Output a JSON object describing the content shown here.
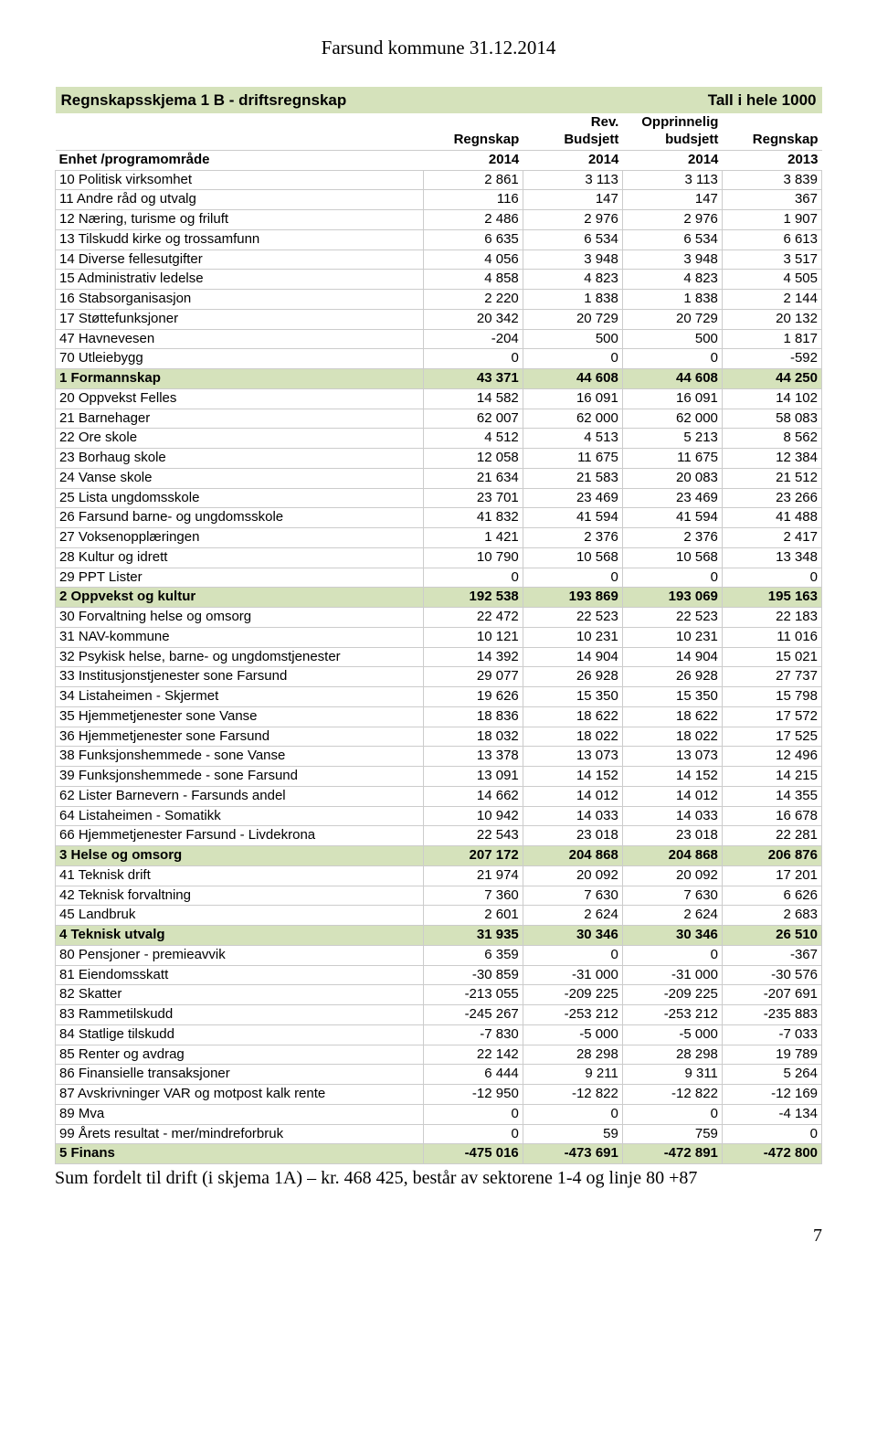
{
  "page_header": "Farsund kommune 31.12.2014",
  "title_left": "Regnskapsskjema 1 B - driftsregnskap",
  "title_right": "Tall i hele 1000",
  "header": {
    "label_line1": "",
    "label_line2": "Enhet /programområde",
    "c1_line1": "Regnskap",
    "c1_line2": "2014",
    "c2_line1": "Rev.\nBudsjett",
    "c2_line2": "2014",
    "c3_line1": "Opprinnelig\nbudsjett",
    "c3_line2": "2014",
    "c4_line1": "Regnskap",
    "c4_line2": "2013"
  },
  "rows": [
    {
      "type": "data",
      "label": "10 Politisk virksomhet",
      "v": [
        "2 861",
        "3 113",
        "3 113",
        "3 839"
      ]
    },
    {
      "type": "data",
      "label": "11 Andre råd og utvalg",
      "v": [
        "116",
        "147",
        "147",
        "367"
      ]
    },
    {
      "type": "data",
      "label": "12 Næring, turisme og friluft",
      "v": [
        "2 486",
        "2 976",
        "2 976",
        "1 907"
      ]
    },
    {
      "type": "data",
      "label": "13 Tilskudd kirke og trossamfunn",
      "v": [
        "6 635",
        "6 534",
        "6 534",
        "6 613"
      ]
    },
    {
      "type": "data",
      "label": "14 Diverse fellesutgifter",
      "v": [
        "4 056",
        "3 948",
        "3 948",
        "3 517"
      ]
    },
    {
      "type": "data",
      "label": "15 Administrativ ledelse",
      "v": [
        "4 858",
        "4 823",
        "4 823",
        "4 505"
      ]
    },
    {
      "type": "data",
      "label": "16 Stabsorganisasjon",
      "v": [
        "2 220",
        "1 838",
        "1 838",
        "2 144"
      ]
    },
    {
      "type": "data",
      "label": "17 Støttefunksjoner",
      "v": [
        "20 342",
        "20 729",
        "20 729",
        "20 132"
      ]
    },
    {
      "type": "data",
      "label": "47 Havnevesen",
      "v": [
        "-204",
        "500",
        "500",
        "1 817"
      ]
    },
    {
      "type": "data",
      "label": "70 Utleiebygg",
      "v": [
        "0",
        "0",
        "0",
        "-592"
      ]
    },
    {
      "type": "subtotal",
      "label": "1   Formannskap",
      "v": [
        "43 371",
        "44 608",
        "44 608",
        "44 250"
      ]
    },
    {
      "type": "data",
      "label": "20 Oppvekst Felles",
      "v": [
        "14 582",
        "16 091",
        "16 091",
        "14 102"
      ]
    },
    {
      "type": "data",
      "label": "21 Barnehager",
      "v": [
        "62 007",
        "62 000",
        "62 000",
        "58 083"
      ]
    },
    {
      "type": "data",
      "label": "22 Ore skole",
      "v": [
        "4 512",
        "4 513",
        "5 213",
        "8 562"
      ]
    },
    {
      "type": "data",
      "label": "23 Borhaug skole",
      "v": [
        "12 058",
        "11 675",
        "11 675",
        "12 384"
      ]
    },
    {
      "type": "data",
      "label": "24 Vanse skole",
      "v": [
        "21 634",
        "21 583",
        "20 083",
        "21 512"
      ]
    },
    {
      "type": "data",
      "label": "25 Lista ungdomsskole",
      "v": [
        "23 701",
        "23 469",
        "23 469",
        "23 266"
      ]
    },
    {
      "type": "data",
      "label": "26 Farsund barne- og ungdomsskole",
      "v": [
        "41 832",
        "41 594",
        "41 594",
        "41 488"
      ]
    },
    {
      "type": "data",
      "label": "27 Voksenopplæringen",
      "v": [
        "1 421",
        "2 376",
        "2 376",
        "2 417"
      ]
    },
    {
      "type": "data",
      "label": "28 Kultur og idrett",
      "v": [
        "10 790",
        "10 568",
        "10 568",
        "13 348"
      ]
    },
    {
      "type": "data",
      "label": "29 PPT Lister",
      "v": [
        "0",
        "0",
        "0",
        "0"
      ]
    },
    {
      "type": "subtotal",
      "label": "2   Oppvekst og kultur",
      "v": [
        "192 538",
        "193 869",
        "193 069",
        "195 163"
      ]
    },
    {
      "type": "data",
      "label": "30 Forvaltning helse og omsorg",
      "v": [
        "22 472",
        "22 523",
        "22 523",
        "22 183"
      ]
    },
    {
      "type": "data",
      "label": "31 NAV-kommune",
      "v": [
        "10 121",
        "10 231",
        "10 231",
        "11 016"
      ]
    },
    {
      "type": "data",
      "label": "32 Psykisk helse, barne- og ungdomstjenester",
      "v": [
        "14 392",
        "14 904",
        "14 904",
        "15 021"
      ]
    },
    {
      "type": "data",
      "label": "33 Institusjonstjenester sone Farsund",
      "v": [
        "29 077",
        "26 928",
        "26 928",
        "27 737"
      ]
    },
    {
      "type": "data",
      "label": "34 Listaheimen - Skjermet",
      "v": [
        "19 626",
        "15 350",
        "15 350",
        "15 798"
      ]
    },
    {
      "type": "data",
      "label": "35 Hjemmetjenester sone Vanse",
      "v": [
        "18 836",
        "18 622",
        "18 622",
        "17 572"
      ]
    },
    {
      "type": "data",
      "label": "36 Hjemmetjenester sone Farsund",
      "v": [
        "18 032",
        "18 022",
        "18 022",
        "17 525"
      ]
    },
    {
      "type": "data",
      "label": "38 Funksjonshemmede - sone Vanse",
      "v": [
        "13 378",
        "13 073",
        "13 073",
        "12 496"
      ]
    },
    {
      "type": "data",
      "label": "39 Funksjonshemmede - sone Farsund",
      "v": [
        "13 091",
        "14 152",
        "14 152",
        "14 215"
      ]
    },
    {
      "type": "data",
      "label": "62 Lister Barnevern - Farsunds andel",
      "v": [
        "14 662",
        "14 012",
        "14 012",
        "14 355"
      ]
    },
    {
      "type": "data",
      "label": "64 Listaheimen - Somatikk",
      "v": [
        "10 942",
        "14 033",
        "14 033",
        "16 678"
      ]
    },
    {
      "type": "data",
      "label": "66 Hjemmetjenester Farsund - Livdekrona",
      "v": [
        "22 543",
        "23 018",
        "23 018",
        "22 281"
      ]
    },
    {
      "type": "subtotal",
      "label": "3   Helse og omsorg",
      "v": [
        "207 172",
        "204 868",
        "204 868",
        "206 876"
      ]
    },
    {
      "type": "data",
      "label": "41 Teknisk drift",
      "v": [
        "21 974",
        "20 092",
        "20 092",
        "17 201"
      ]
    },
    {
      "type": "data",
      "label": "42 Teknisk forvaltning",
      "v": [
        "7 360",
        "7 630",
        "7 630",
        "6 626"
      ]
    },
    {
      "type": "data",
      "label": "45 Landbruk",
      "v": [
        "2 601",
        "2 624",
        "2 624",
        "2 683"
      ]
    },
    {
      "type": "subtotal",
      "label": "4   Teknisk utvalg",
      "v": [
        "31 935",
        "30 346",
        "30 346",
        "26 510"
      ]
    },
    {
      "type": "data",
      "label": "80 Pensjoner - premieavvik",
      "v": [
        "6 359",
        "0",
        "0",
        "-367"
      ]
    },
    {
      "type": "data",
      "label": "81 Eiendomsskatt",
      "v": [
        "-30 859",
        "-31 000",
        "-31 000",
        "-30 576"
      ]
    },
    {
      "type": "data",
      "label": "82 Skatter",
      "v": [
        "-213 055",
        "-209 225",
        "-209 225",
        "-207 691"
      ]
    },
    {
      "type": "data",
      "label": "83 Rammetilskudd",
      "v": [
        "-245 267",
        "-253 212",
        "-253 212",
        "-235 883"
      ]
    },
    {
      "type": "data",
      "label": "84 Statlige tilskudd",
      "v": [
        "-7 830",
        "-5 000",
        "-5 000",
        "-7 033"
      ]
    },
    {
      "type": "data",
      "label": "85 Renter og avdrag",
      "v": [
        "22 142",
        "28 298",
        "28 298",
        "19 789"
      ]
    },
    {
      "type": "data",
      "label": "86 Finansielle transaksjoner",
      "v": [
        "6 444",
        "9 211",
        "9 311",
        "5 264"
      ]
    },
    {
      "type": "data",
      "label": "87 Avskrivninger VAR og motpost kalk rente",
      "v": [
        "-12 950",
        "-12 822",
        "-12 822",
        "-12 169"
      ]
    },
    {
      "type": "data",
      "label": "89 Mva",
      "v": [
        "0",
        "0",
        "0",
        "-4 134"
      ]
    },
    {
      "type": "data",
      "label": "99 Årets resultat - mer/mindreforbruk",
      "v": [
        "0",
        "59",
        "759",
        "0"
      ]
    },
    {
      "type": "subtotal",
      "label": "5   Finans",
      "v": [
        "-475 016",
        "-473 691",
        "-472 891",
        "-472 800"
      ]
    }
  ],
  "footnote": "Sum fordelt til drift (i skjema 1A) – kr. 468 425, består av sektorene 1-4 og linje 80 +87",
  "page_number": "7",
  "colors": {
    "subtotal_bg": "#d5e2bb",
    "border": "#cccccc"
  }
}
